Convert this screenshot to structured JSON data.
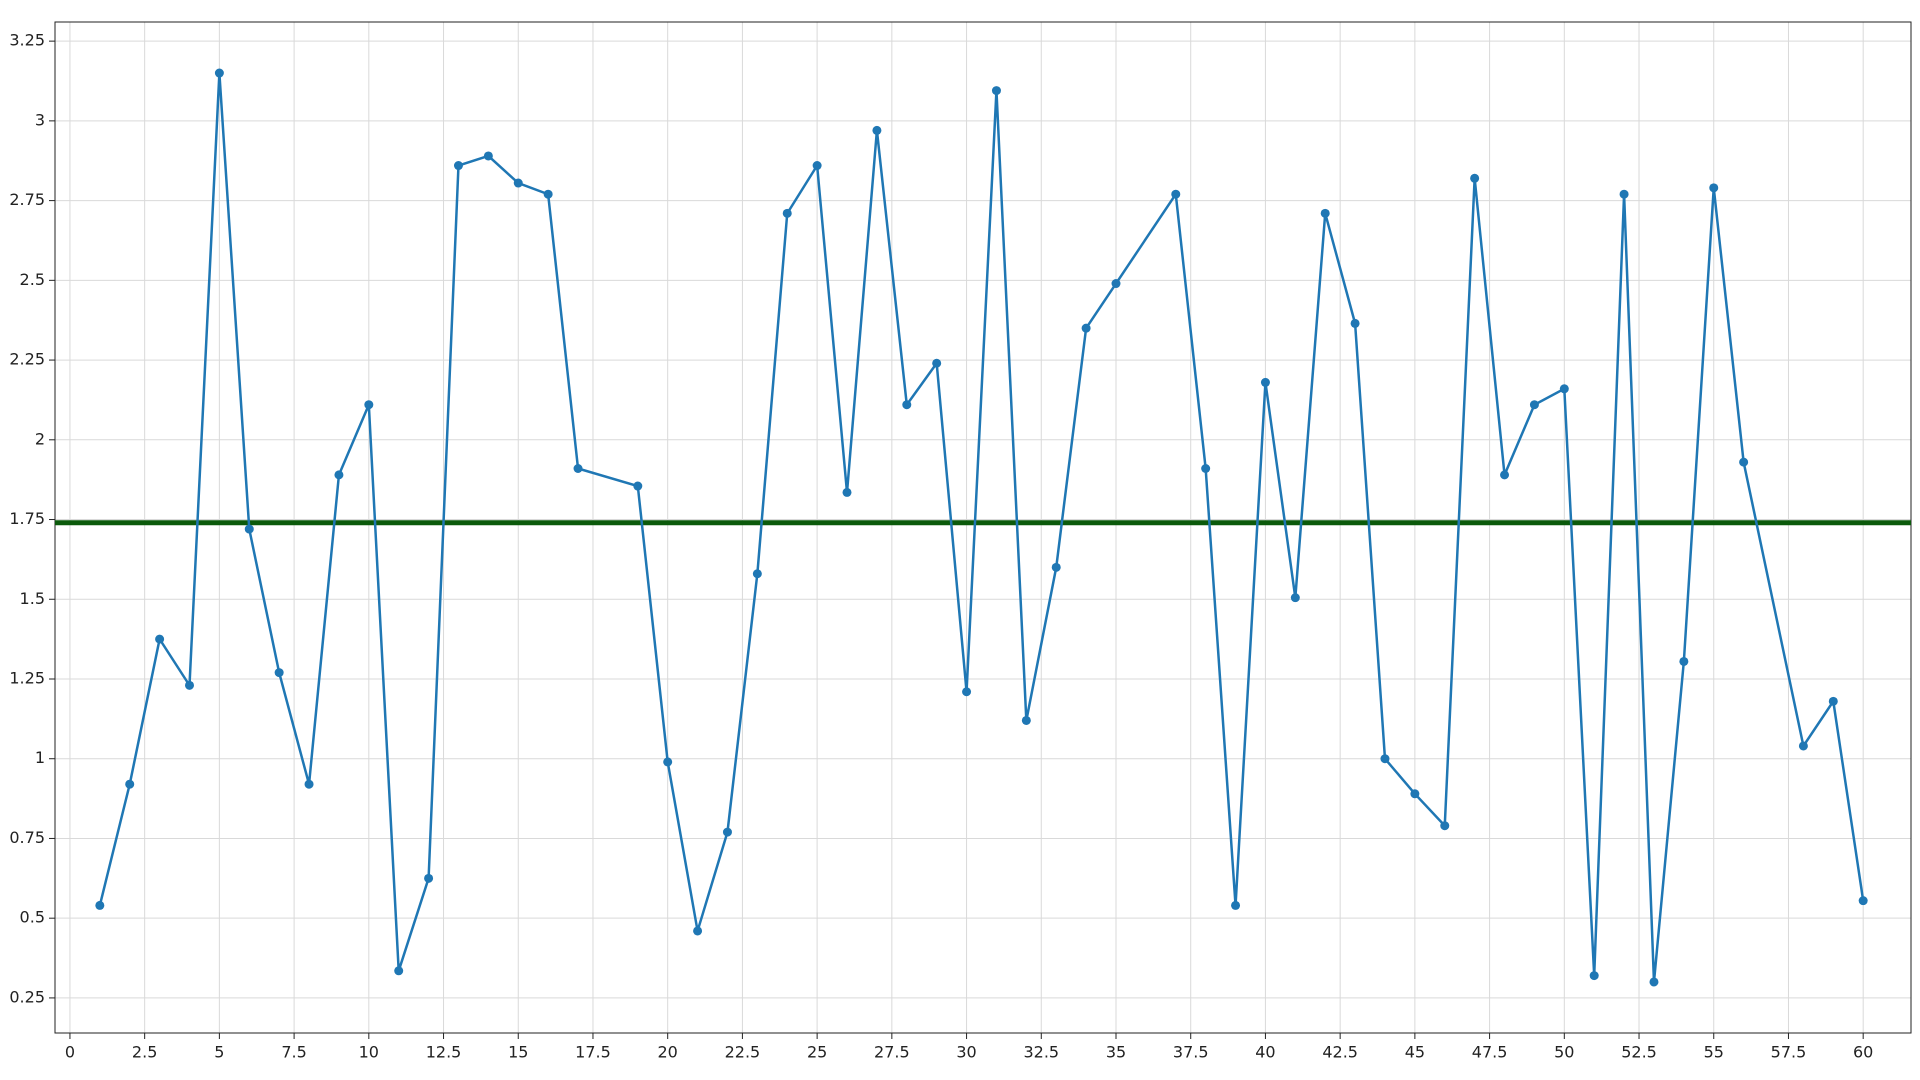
{
  "chart_data": {
    "type": "line",
    "x": [
      1,
      2,
      3,
      4,
      5,
      6,
      7,
      8,
      9,
      10,
      11,
      12,
      13,
      14,
      15,
      16,
      17,
      19,
      20,
      21,
      22,
      23,
      24,
      25,
      26,
      27,
      28,
      29,
      30,
      31,
      32,
      33,
      34,
      35,
      37,
      38,
      39,
      40,
      41,
      42,
      43,
      44,
      45,
      46,
      47,
      48,
      49,
      50,
      51,
      52,
      53,
      54,
      55,
      56,
      58,
      59,
      60
    ],
    "series": [
      {
        "color": "#1f77b4",
        "values": [
          0.54,
          0.92,
          1.375,
          1.23,
          3.15,
          1.72,
          1.27,
          0.92,
          1.89,
          2.11,
          0.335,
          0.625,
          2.86,
          2.89,
          2.805,
          2.77,
          1.91,
          1.855,
          0.99,
          0.46,
          0.77,
          1.58,
          2.71,
          2.86,
          1.835,
          2.97,
          2.11,
          2.24,
          1.21,
          3.095,
          1.12,
          1.6,
          2.35,
          2.49,
          2.77,
          1.91,
          0.54,
          2.18,
          1.505,
          2.71,
          2.365,
          1.0,
          0.89,
          0.79,
          2.82,
          1.89,
          2.11,
          2.16,
          0.32,
          2.77,
          0.3,
          1.305,
          2.79,
          1.93,
          1.04,
          1.18,
          0.555
        ]
      }
    ],
    "hline": {
      "value": 1.74,
      "color": "#0b5a0b"
    },
    "xlim": [
      -0.5,
      61.6
    ],
    "xticks": [
      0,
      2.5,
      5,
      7.5,
      10,
      12.5,
      15,
      17.5,
      20,
      22.5,
      25,
      27.5,
      30,
      32.5,
      35,
      37.5,
      40,
      42.5,
      45,
      47.5,
      50,
      52.5,
      55,
      57.5,
      60
    ],
    "ylim": [
      0.14,
      3.31
    ],
    "yticks": [
      0.25,
      0.5,
      0.75,
      1,
      1.25,
      1.5,
      1.75,
      2,
      2.25,
      2.5,
      2.75,
      3,
      3.25
    ],
    "grid": true
  }
}
